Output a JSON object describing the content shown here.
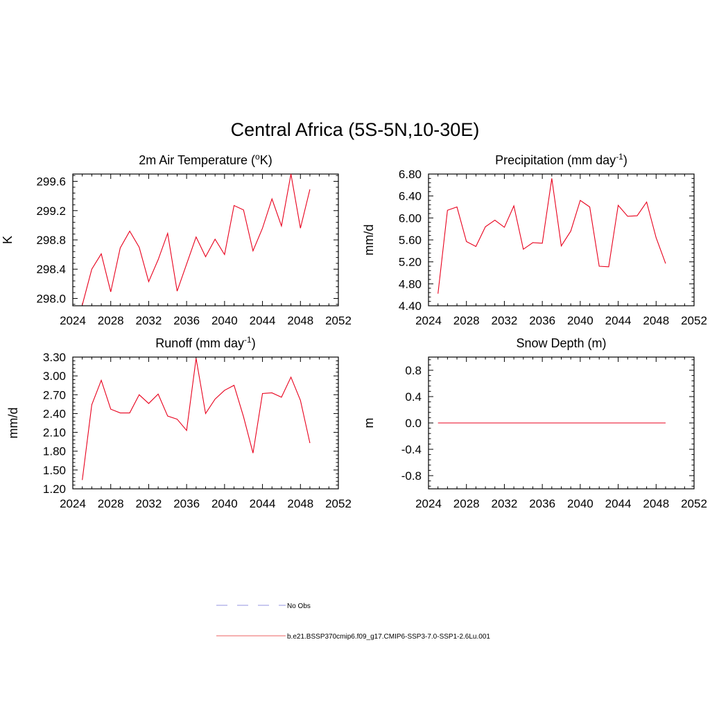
{
  "figure": {
    "title": "Central Africa (5S-5N,10-30E)"
  },
  "chart_data": [
    {
      "type": "line",
      "title": "2m Air Temperature (oK)",
      "title_parts": {
        "base": "2m Air Temperature (",
        "sup": "o",
        "tail": "K)"
      },
      "ylabel": "K",
      "xlim": [
        2024,
        2052
      ],
      "ylim": [
        297.9,
        299.7
      ],
      "xticks": [
        2024,
        2028,
        2032,
        2036,
        2040,
        2044,
        2048,
        2052
      ],
      "yticks": [
        298.0,
        298.4,
        298.8,
        299.2,
        299.6
      ],
      "ytick_labels": [
        "298.0",
        "298.4",
        "298.8",
        "299.2",
        "299.6"
      ],
      "series": [
        {
          "color": "#e8001c",
          "x": [
            2025,
            2026,
            2027,
            2028,
            2029,
            2030,
            2031,
            2032,
            2033,
            2034,
            2035,
            2036,
            2037,
            2038,
            2039,
            2040,
            2041,
            2042,
            2043,
            2044,
            2045,
            2046,
            2047,
            2048,
            2049
          ],
          "y": [
            297.91,
            298.4,
            298.61,
            298.09,
            298.69,
            298.92,
            298.7,
            298.23,
            298.53,
            298.89,
            298.1,
            298.47,
            298.84,
            298.57,
            298.81,
            298.6,
            299.27,
            299.21,
            298.65,
            298.96,
            299.36,
            298.99,
            299.7,
            298.96,
            299.49
          ]
        }
      ]
    },
    {
      "type": "line",
      "title": "Precipitation (mm day-1)",
      "title_parts": {
        "base": "Precipitation (mm day",
        "sup": "-1",
        "tail": ")"
      },
      "ylabel": "mm/d",
      "xlim": [
        2024,
        2052
      ],
      "ylim": [
        4.4,
        6.8
      ],
      "xticks": [
        2024,
        2028,
        2032,
        2036,
        2040,
        2044,
        2048,
        2052
      ],
      "yticks": [
        4.4,
        4.8,
        5.2,
        5.6,
        6.0,
        6.4,
        6.8
      ],
      "ytick_labels": [
        "4.40",
        "4.80",
        "5.20",
        "5.60",
        "6.00",
        "6.40",
        "6.80"
      ],
      "series": [
        {
          "color": "#e8001c",
          "x": [
            2025,
            2026,
            2027,
            2028,
            2029,
            2030,
            2031,
            2032,
            2033,
            2034,
            2035,
            2036,
            2037,
            2038,
            2039,
            2040,
            2041,
            2042,
            2043,
            2044,
            2045,
            2046,
            2047,
            2048,
            2049
          ],
          "y": [
            4.62,
            6.14,
            6.2,
            5.57,
            5.48,
            5.84,
            5.96,
            5.83,
            6.22,
            5.43,
            5.55,
            5.54,
            6.72,
            5.49,
            5.76,
            6.32,
            6.2,
            5.12,
            5.11,
            6.23,
            6.03,
            6.04,
            6.29,
            5.64,
            5.17
          ]
        }
      ]
    },
    {
      "type": "line",
      "title": "Runoff (mm day-1)",
      "title_parts": {
        "base": "Runoff (mm day",
        "sup": "-1",
        "tail": ")"
      },
      "ylabel": "mm/d",
      "xlim": [
        2024,
        2052
      ],
      "ylim": [
        1.2,
        3.3
      ],
      "xticks": [
        2024,
        2028,
        2032,
        2036,
        2040,
        2044,
        2048,
        2052
      ],
      "yticks": [
        1.2,
        1.5,
        1.8,
        2.1,
        2.4,
        2.7,
        3.0,
        3.3
      ],
      "ytick_labels": [
        "1.20",
        "1.50",
        "1.80",
        "2.10",
        "2.40",
        "2.70",
        "3.00",
        "3.30"
      ],
      "series": [
        {
          "color": "#e8001c",
          "x": [
            2025,
            2026,
            2027,
            2028,
            2029,
            2030,
            2031,
            2032,
            2033,
            2034,
            2035,
            2036,
            2037,
            2038,
            2039,
            2040,
            2041,
            2042,
            2043,
            2044,
            2045,
            2046,
            2047,
            2048,
            2049
          ],
          "y": [
            1.34,
            2.54,
            2.93,
            2.47,
            2.41,
            2.41,
            2.7,
            2.56,
            2.71,
            2.36,
            2.31,
            2.13,
            3.28,
            2.4,
            2.63,
            2.77,
            2.85,
            2.35,
            1.77,
            2.72,
            2.73,
            2.66,
            2.98,
            2.61,
            1.93
          ]
        }
      ]
    },
    {
      "type": "line",
      "title": "Snow Depth (m)",
      "title_parts": {
        "base": "Snow Depth (m)",
        "sup": "",
        "tail": ""
      },
      "ylabel": "m",
      "xlim": [
        2024,
        2052
      ],
      "ylim": [
        -1.0,
        1.0
      ],
      "xticks": [
        2024,
        2028,
        2032,
        2036,
        2040,
        2044,
        2048,
        2052
      ],
      "yticks": [
        -0.8,
        -0.4,
        0.0,
        0.4,
        0.8
      ],
      "ytick_labels": [
        "-0.8",
        "-0.4",
        "0.0",
        "0.4",
        "0.8"
      ],
      "series": [
        {
          "color": "#e8001c",
          "x": [
            2025,
            2026,
            2027,
            2028,
            2029,
            2030,
            2031,
            2032,
            2033,
            2034,
            2035,
            2036,
            2037,
            2038,
            2039,
            2040,
            2041,
            2042,
            2043,
            2044,
            2045,
            2046,
            2047,
            2048,
            2049
          ],
          "y": [
            0,
            0,
            0,
            0,
            0,
            0,
            0,
            0,
            0,
            0,
            0,
            0,
            0,
            0,
            0,
            0,
            0,
            0,
            0,
            0,
            0,
            0,
            0,
            0,
            0
          ]
        }
      ]
    }
  ],
  "legend": [
    {
      "label": "No Obs",
      "color": "#a9a9e8",
      "style": "dashed"
    },
    {
      "label": "b.e21.BSSP370cmip6.f09_g17.CMIP6-SSP3-7.0-SSP1-2.6Lu.001",
      "color": "#f08080",
      "style": "solid"
    }
  ]
}
